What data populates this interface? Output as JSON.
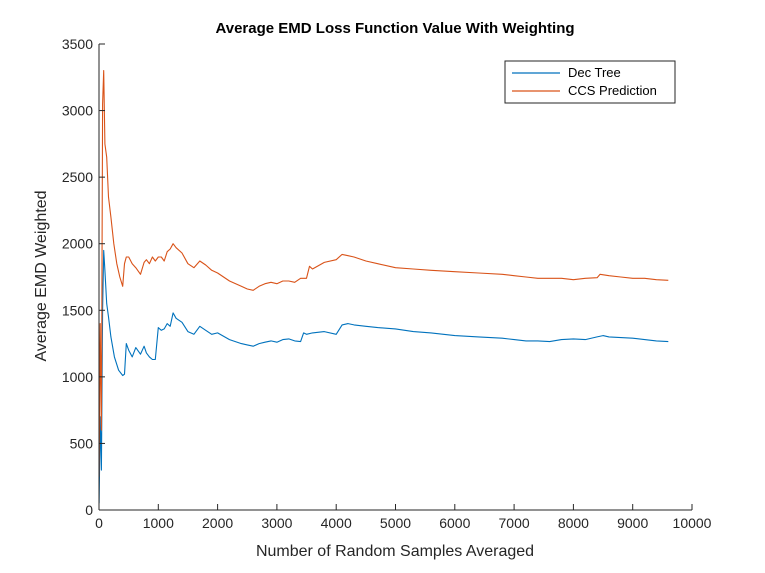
{
  "chart_data": {
    "type": "line",
    "title": "Average EMD Loss Function Value With Weighting",
    "xlabel": "Number of Random Samples Averaged",
    "ylabel": "Average EMD Weighted",
    "xlim": [
      0,
      10000
    ],
    "ylim": [
      0,
      3500
    ],
    "xticks": [
      "0",
      "1000",
      "2000",
      "3000",
      "4000",
      "5000",
      "6000",
      "7000",
      "8000",
      "9000",
      "10000"
    ],
    "yticks": [
      "0",
      "500",
      "1000",
      "1500",
      "2000",
      "2500",
      "3000",
      "3500"
    ],
    "grid": false,
    "legend_position": "top-right",
    "series": [
      {
        "name": "Dec Tree",
        "color": "#0072BD",
        "x": [
          1,
          20,
          40,
          60,
          80,
          100,
          130,
          160,
          200,
          260,
          330,
          400,
          430,
          460,
          500,
          560,
          620,
          700,
          760,
          800,
          850,
          900,
          950,
          1000,
          1050,
          1100,
          1150,
          1200,
          1250,
          1300,
          1400,
          1500,
          1600,
          1700,
          1800,
          1900,
          2000,
          2200,
          2400,
          2500,
          2600,
          2700,
          2800,
          2900,
          3000,
          3100,
          3200,
          3300,
          3400,
          3450,
          3500,
          3600,
          3800,
          4000,
          4100,
          4200,
          4300,
          4500,
          4700,
          5000,
          5300,
          5600,
          6000,
          6400,
          6800,
          7000,
          7200,
          7400,
          7600,
          7800,
          8000,
          8200,
          8400,
          8500,
          8600,
          8800,
          9000,
          9200,
          9400,
          9600
        ],
        "y": [
          50,
          700,
          300,
          1500,
          1950,
          1800,
          1550,
          1450,
          1300,
          1150,
          1050,
          1010,
          1020,
          1250,
          1200,
          1150,
          1220,
          1170,
          1230,
          1180,
          1150,
          1130,
          1130,
          1370,
          1350,
          1360,
          1400,
          1380,
          1480,
          1440,
          1410,
          1340,
          1320,
          1380,
          1350,
          1320,
          1330,
          1280,
          1250,
          1240,
          1230,
          1250,
          1260,
          1270,
          1260,
          1280,
          1285,
          1270,
          1265,
          1330,
          1320,
          1330,
          1340,
          1320,
          1390,
          1400,
          1390,
          1380,
          1370,
          1360,
          1340,
          1330,
          1310,
          1300,
          1290,
          1280,
          1270,
          1270,
          1265,
          1280,
          1285,
          1280,
          1300,
          1310,
          1300,
          1295,
          1290,
          1280,
          1270,
          1265
        ]
      },
      {
        "name": "CCS Prediction",
        "color": "#D95319",
        "x": [
          1,
          20,
          40,
          60,
          80,
          100,
          130,
          160,
          200,
          250,
          300,
          350,
          400,
          430,
          460,
          500,
          560,
          620,
          700,
          760,
          800,
          850,
          900,
          950,
          1000,
          1050,
          1100,
          1150,
          1200,
          1250,
          1300,
          1400,
          1500,
          1600,
          1700,
          1800,
          1900,
          2000,
          2200,
          2400,
          2500,
          2600,
          2700,
          2800,
          2900,
          3000,
          3100,
          3200,
          3300,
          3400,
          3500,
          3550,
          3600,
          3800,
          4000,
          4100,
          4200,
          4300,
          4500,
          4700,
          5000,
          5300,
          5600,
          6000,
          6400,
          6800,
          7000,
          7200,
          7400,
          7600,
          7800,
          8000,
          8200,
          8400,
          8450,
          8600,
          8800,
          9000,
          9200,
          9400,
          9600
        ],
        "y": [
          250,
          1400,
          600,
          3050,
          3300,
          2750,
          2650,
          2350,
          2200,
          2000,
          1850,
          1750,
          1680,
          1850,
          1900,
          1900,
          1850,
          1820,
          1770,
          1860,
          1880,
          1850,
          1900,
          1870,
          1900,
          1900,
          1870,
          1940,
          1960,
          2000,
          1970,
          1930,
          1850,
          1820,
          1870,
          1840,
          1800,
          1780,
          1720,
          1680,
          1660,
          1650,
          1680,
          1700,
          1710,
          1700,
          1720,
          1720,
          1710,
          1740,
          1740,
          1830,
          1810,
          1860,
          1880,
          1920,
          1910,
          1900,
          1870,
          1850,
          1820,
          1810,
          1800,
          1790,
          1780,
          1770,
          1760,
          1750,
          1740,
          1740,
          1740,
          1730,
          1740,
          1745,
          1770,
          1760,
          1750,
          1740,
          1740,
          1730,
          1725
        ]
      }
    ]
  }
}
